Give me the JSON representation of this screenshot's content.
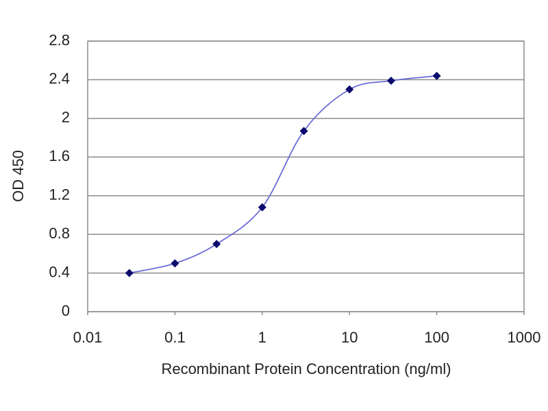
{
  "chart_data": {
    "type": "line",
    "x_label": "Recombinant Protein Concentration (ng/ml)",
    "y_label": "OD 450",
    "x": [
      0.03,
      0.1,
      0.3,
      1,
      3,
      10,
      30,
      100
    ],
    "series": [
      {
        "color": "#6b6bd6",
        "marker_color": "#0a0a6e",
        "values": [
          0.4,
          0.5,
          0.7,
          1.08,
          1.87,
          2.3,
          2.39,
          2.44
        ]
      }
    ],
    "x_log": true,
    "xlim": [
      0.01,
      1000
    ],
    "xticks": [
      0.01,
      0.1,
      1,
      10,
      100,
      1000
    ],
    "ylim": [
      0,
      2.8
    ],
    "yticks": [
      0,
      0.4,
      0.8,
      1.2,
      1.6,
      2,
      2.4,
      2.8
    ],
    "grid": true
  }
}
